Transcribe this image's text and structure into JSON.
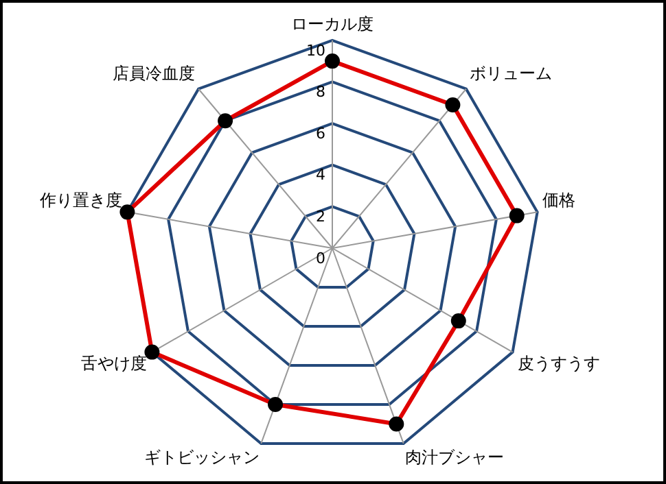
{
  "chart_data": {
    "type": "radar",
    "categories": [
      "ローカル度",
      "ボリューム",
      "価格",
      "皮うすうす",
      "肉汁ブシャー",
      "ギトビッシャン",
      "舌やけ度",
      "作り置き度",
      "店員冷血度"
    ],
    "series": [
      {
        "color": "#e00000",
        "values": [
          9,
          9,
          9,
          7,
          9,
          8,
          10,
          10,
          8
        ]
      }
    ],
    "ylim": [
      0,
      10
    ],
    "yticks": [
      0,
      2,
      4,
      6,
      8,
      10
    ],
    "grid": true,
    "legend": false,
    "marker": "circle",
    "line_style": "solid"
  }
}
